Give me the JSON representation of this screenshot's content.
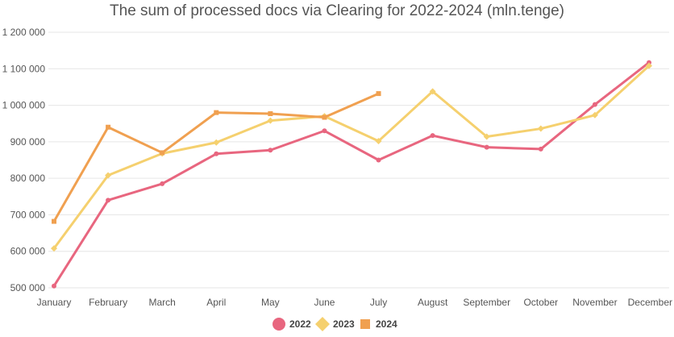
{
  "chart_data": {
    "type": "line",
    "title": "The sum of processed docs via Clearing for 2022-2024 (mln.tenge)",
    "xlabel": "",
    "ylabel": "",
    "categories": [
      "January",
      "February",
      "March",
      "April",
      "May",
      "June",
      "July",
      "August",
      "September",
      "October",
      "November",
      "December"
    ],
    "ylim": [
      500000,
      1200000
    ],
    "yticks": [
      500000,
      600000,
      700000,
      800000,
      900000,
      1000000,
      1100000,
      1200000
    ],
    "ytick_labels": [
      "500 000",
      "600 000",
      "700 000",
      "800 000",
      "900 000",
      "1 000 000",
      "1 100 000",
      "1 200 000"
    ],
    "grid": true,
    "legend": "bottom-center",
    "series": [
      {
        "name": "2022",
        "color": "#e8667f",
        "marker": "circle",
        "values": [
          505000,
          740000,
          785000,
          867000,
          877000,
          930000,
          850000,
          917000,
          885000,
          880000,
          1002000,
          1117000
        ]
      },
      {
        "name": "2023",
        "color": "#f5d06e",
        "marker": "diamond",
        "values": [
          608000,
          808000,
          868000,
          898000,
          958000,
          970000,
          902000,
          1038000,
          914000,
          936000,
          973000,
          1108000
        ]
      },
      {
        "name": "2024",
        "color": "#f0a050",
        "marker": "square",
        "values": [
          682000,
          940000,
          870000,
          980000,
          977000,
          967000,
          1032000,
          null,
          null,
          null,
          null,
          null
        ]
      }
    ]
  }
}
